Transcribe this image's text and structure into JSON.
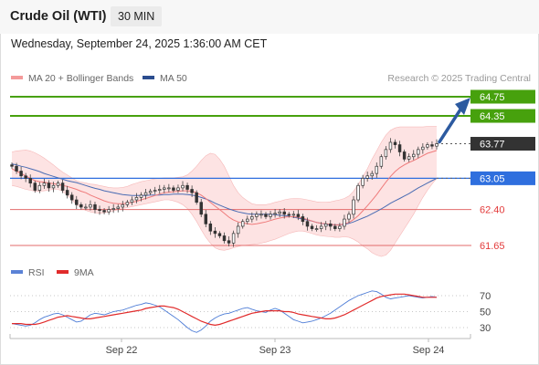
{
  "header": {
    "title": "Crude Oil (WTI)",
    "timeframe": "30 MIN",
    "datetime": "Wednesday, September 24, 2025 1:36:00 AM CET"
  },
  "legend": {
    "ma20": "MA 20 + Bollinger Bands",
    "ma50": "MA 50",
    "credit": "Research © 2025 Trading Central",
    "rsi": "RSI",
    "ma9": "9MA"
  },
  "colors": {
    "ma20": "#ef7b7b",
    "bollinger_fill": "#fde0e0",
    "ma50": "#4a6cb3",
    "resistance": "#47a10d",
    "support": "#e36b6b",
    "pivot": "#2f6fde",
    "last": "#333333",
    "rsi": "#4d7cd6",
    "rsi_ma": "#e12b2b",
    "arrow": "#2c5aa0"
  },
  "chart_data": [
    {
      "type": "candlestick",
      "title": "Crude Oil (WTI)",
      "ylim": [
        61.2,
        64.95
      ],
      "x_ticks": [
        "Sep 22",
        "Sep 23",
        "Sep 24"
      ],
      "levels": [
        {
          "value": 64.75,
          "label": "64.75",
          "kind": "resistance"
        },
        {
          "value": 64.35,
          "label": "64.35",
          "kind": "resistance"
        },
        {
          "value": 63.77,
          "label": "63.77",
          "kind": "last"
        },
        {
          "value": 63.05,
          "label": "63.05",
          "kind": "pivot"
        },
        {
          "value": 62.4,
          "label": "62.40",
          "kind": "support"
        },
        {
          "value": 61.65,
          "label": "61.65",
          "kind": "support"
        }
      ],
      "close": [
        63.3,
        63.2,
        63.1,
        63.05,
        62.95,
        62.8,
        62.9,
        62.95,
        62.85,
        62.9,
        62.95,
        62.8,
        62.7,
        62.6,
        62.5,
        62.45,
        62.45,
        62.5,
        62.4,
        62.38,
        62.35,
        62.4,
        62.42,
        62.45,
        62.5,
        62.55,
        62.6,
        62.65,
        62.7,
        62.75,
        62.78,
        62.8,
        62.82,
        62.85,
        62.85,
        62.8,
        62.85,
        62.9,
        62.82,
        62.75,
        62.55,
        62.3,
        62.1,
        61.95,
        61.9,
        61.85,
        61.75,
        61.7,
        61.9,
        62.05,
        62.15,
        62.2,
        62.25,
        62.3,
        62.3,
        62.25,
        62.3,
        62.32,
        62.35,
        62.3,
        62.28,
        62.3,
        62.25,
        62.15,
        62.05,
        62.0,
        62.0,
        62.05,
        62.1,
        62.05,
        62.0,
        62.05,
        62.2,
        62.3,
        62.6,
        62.9,
        63.05,
        63.1,
        63.15,
        63.3,
        63.5,
        63.65,
        63.8,
        63.75,
        63.6,
        63.45,
        63.5,
        63.55,
        63.65,
        63.7,
        63.75,
        63.72,
        63.77
      ],
      "ma20": [
        63.25,
        63.2,
        63.15,
        63.1,
        63.05,
        63.0,
        62.98,
        62.97,
        62.95,
        62.94,
        62.92,
        62.9,
        62.88,
        62.85,
        62.82,
        62.78,
        62.75,
        62.7,
        62.66,
        62.62,
        62.58,
        62.55,
        62.53,
        62.52,
        62.52,
        62.53,
        62.55,
        62.57,
        62.6,
        62.63,
        62.66,
        62.69,
        62.72,
        62.75,
        62.76,
        62.77,
        62.78,
        62.79,
        62.79,
        62.78,
        62.75,
        62.7,
        62.63,
        62.55,
        62.47,
        62.4,
        62.32,
        62.24,
        62.18,
        62.14,
        62.12,
        62.1,
        62.09,
        62.1,
        62.12,
        62.14,
        62.17,
        62.2,
        62.22,
        62.24,
        62.25,
        62.25,
        62.24,
        62.22,
        62.19,
        62.16,
        62.13,
        62.11,
        62.1,
        62.09,
        62.08,
        62.08,
        62.1,
        62.13,
        62.19,
        62.27,
        62.37,
        62.48,
        62.59,
        62.71,
        62.84,
        62.97,
        63.09,
        63.19,
        63.27,
        63.33,
        63.38,
        63.42,
        63.47,
        63.52,
        63.57,
        63.6,
        63.63
      ],
      "ma50": [
        63.35,
        63.33,
        63.3,
        63.28,
        63.25,
        63.22,
        63.19,
        63.15,
        63.12,
        63.09,
        63.06,
        63.03,
        63.0,
        62.98,
        62.96,
        62.93,
        62.9,
        62.87,
        62.84,
        62.82,
        62.79,
        62.77,
        62.75,
        62.73,
        62.71,
        62.7,
        62.69,
        62.69,
        62.69,
        62.69,
        62.7,
        62.7,
        62.7,
        62.71,
        62.71,
        62.72,
        62.72,
        62.72,
        62.71,
        62.7,
        62.68,
        62.65,
        62.62,
        62.58,
        62.53,
        62.49,
        62.45,
        62.41,
        62.38,
        62.35,
        62.33,
        62.31,
        62.3,
        62.3,
        62.3,
        62.3,
        62.3,
        62.29,
        62.28,
        62.27,
        62.26,
        62.24,
        62.22,
        62.2,
        62.18,
        62.16,
        62.13,
        62.11,
        62.09,
        62.08,
        62.08,
        62.08,
        62.09,
        62.11,
        62.14,
        62.18,
        62.22,
        62.26,
        62.31,
        62.36,
        62.41,
        62.47,
        62.53,
        62.58,
        62.63,
        62.68,
        62.73,
        62.79,
        62.85,
        62.9,
        62.95,
        63.0,
        63.05
      ],
      "band_upper": [
        63.6,
        63.62,
        63.63,
        63.64,
        63.62,
        63.58,
        63.53,
        63.47,
        63.4,
        63.33,
        63.25,
        63.18,
        63.12,
        63.06,
        63.0,
        62.97,
        62.95,
        62.93,
        62.92,
        62.9,
        62.88,
        62.86,
        62.85,
        62.85,
        62.86,
        62.88,
        62.92,
        62.95,
        62.98,
        63.0,
        63.02,
        63.04,
        63.05,
        63.06,
        63.06,
        63.06,
        63.07,
        63.08,
        63.12,
        63.2,
        63.3,
        63.42,
        63.52,
        63.57,
        63.55,
        63.45,
        63.3,
        63.1,
        62.9,
        62.75,
        62.65,
        62.58,
        62.52,
        62.5,
        62.5,
        62.5,
        62.52,
        62.55,
        62.57,
        62.6,
        62.62,
        62.63,
        62.63,
        62.62,
        62.6,
        62.58,
        62.56,
        62.55,
        62.55,
        62.56,
        62.58,
        62.6,
        62.63,
        62.68,
        62.78,
        62.92,
        63.08,
        63.25,
        63.45,
        63.62,
        63.8,
        63.95,
        64.05,
        64.1,
        64.12,
        64.12,
        64.12,
        64.12,
        64.12,
        64.12,
        64.13,
        64.13,
        64.13
      ],
      "band_lower": [
        62.9,
        62.88,
        62.85,
        62.82,
        62.8,
        62.78,
        62.78,
        62.79,
        62.8,
        62.82,
        62.82,
        62.78,
        62.7,
        62.6,
        62.5,
        62.43,
        62.38,
        62.35,
        62.33,
        62.32,
        62.33,
        62.35,
        62.37,
        62.4,
        62.42,
        62.44,
        62.46,
        62.48,
        62.5,
        62.52,
        62.54,
        62.56,
        62.58,
        62.6,
        62.6,
        62.58,
        62.55,
        62.5,
        62.42,
        62.3,
        62.15,
        61.98,
        61.82,
        61.7,
        61.6,
        61.56,
        61.55,
        61.57,
        61.6,
        61.63,
        61.65,
        61.66,
        61.67,
        61.68,
        61.7,
        61.72,
        61.75,
        61.78,
        61.82,
        61.86,
        61.9,
        61.93,
        61.95,
        61.95,
        61.93,
        61.9,
        61.87,
        61.85,
        61.84,
        61.83,
        61.82,
        61.82,
        61.83,
        61.82,
        61.78,
        61.72,
        61.64,
        61.58,
        61.5,
        61.45,
        61.42,
        61.45,
        61.55,
        61.7,
        61.85,
        62.0,
        62.15,
        62.3,
        62.48,
        62.65,
        62.8,
        62.93,
        63.05
      ]
    },
    {
      "type": "line",
      "title": "RSI",
      "ylim": [
        14,
        90
      ],
      "y_ticks": [
        70,
        50,
        30
      ],
      "series": [
        {
          "name": "RSI",
          "values": [
            35,
            34,
            33,
            32,
            33,
            36,
            40,
            43,
            45,
            47,
            48,
            46,
            43,
            40,
            37,
            38,
            42,
            46,
            48,
            47,
            46,
            48,
            50,
            51,
            52,
            54,
            56,
            58,
            59,
            61,
            60,
            58,
            56,
            52,
            48,
            44,
            40,
            35,
            30,
            26,
            24,
            27,
            32,
            38,
            42,
            45,
            47,
            48,
            50,
            52,
            54,
            55,
            53,
            51,
            50,
            49,
            52,
            54,
            52,
            48,
            44,
            40,
            38,
            36,
            37,
            38,
            40,
            42,
            45,
            48,
            52,
            56,
            60,
            64,
            67,
            70,
            72,
            74,
            76,
            75,
            72,
            68,
            66,
            67,
            68,
            69,
            70,
            69,
            68,
            67,
            68,
            69,
            68
          ]
        },
        {
          "name": "9MA",
          "values": [
            35,
            35,
            35,
            34,
            34,
            34,
            35,
            37,
            39,
            41,
            43,
            44,
            45,
            44,
            43,
            42,
            41,
            41,
            42,
            43,
            44,
            45,
            46,
            47,
            48,
            49,
            50,
            51,
            52,
            54,
            55,
            56,
            57,
            57,
            56,
            55,
            53,
            50,
            47,
            44,
            41,
            38,
            36,
            34,
            33,
            34,
            36,
            38,
            40,
            42,
            44,
            46,
            48,
            49,
            50,
            51,
            51,
            51,
            51,
            50,
            50,
            49,
            47,
            46,
            45,
            44,
            43,
            42,
            41,
            41,
            42,
            44,
            46,
            49,
            52,
            55,
            58,
            61,
            64,
            67,
            69,
            70,
            71,
            72,
            72,
            72,
            71,
            70,
            69,
            68,
            68,
            68,
            68
          ]
        }
      ]
    }
  ]
}
